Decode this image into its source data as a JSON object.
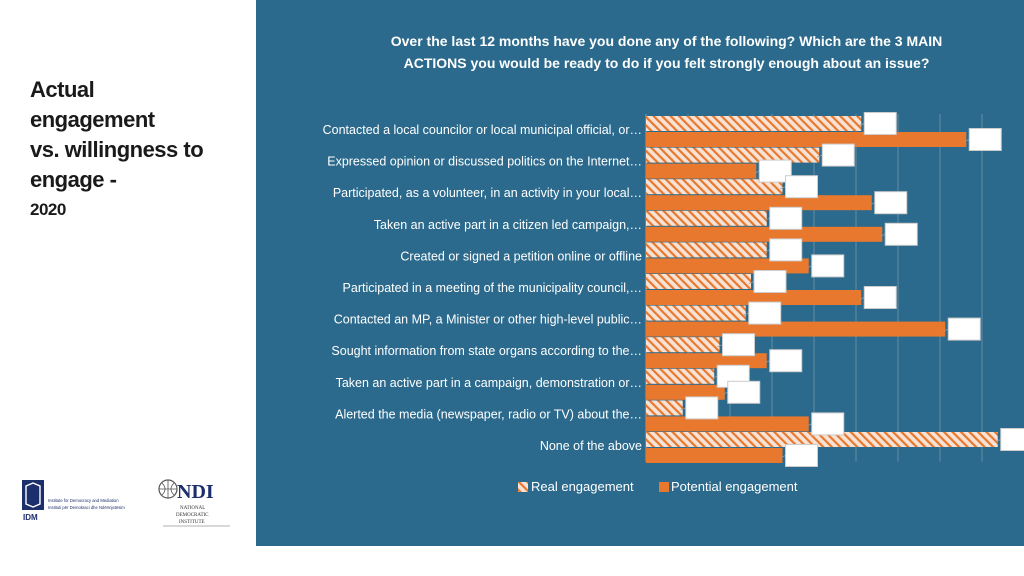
{
  "heading": {
    "line1": "Actual",
    "line2": "engagement",
    "line3": "vs. willingness to",
    "line4": "engage -",
    "year": "2020"
  },
  "logos": {
    "idm_text": "IDM",
    "idm_name": "Institute for Democracy and Mediation",
    "idm_subname": "Instituti për Demokraci dhe Ndërmjetësim",
    "ndi_text": "NDI",
    "ndi_line1": "NATIONAL",
    "ndi_line2": "DEMOCRATIC",
    "ndi_line3": "INSTITUTE"
  },
  "colors": {
    "panel": "#2b6a8c",
    "potential": "#e8782e",
    "real_stripe": "#e8782e",
    "real_bg": "#f6e3d6"
  },
  "chart_data": {
    "type": "bar",
    "orientation": "horizontal",
    "title": "Over the last 12 months have you done any of the following? Which are the 3 MAIN ACTIONS you would be ready to do if you felt strongly enough about an issue?",
    "categories": [
      "Contacted a local councilor or local municipal official, or…",
      "Expressed opinion or discussed politics on the Internet…",
      "Participated, as a volunteer, in an activity in your local…",
      "Taken an active part in a citizen led campaign,…",
      "Created or signed a petition online or offline",
      "Participated in a meeting of the municipality council,…",
      "Contacted an MP, a Minister or other high-level public…",
      "Sought information from state organs according to the…",
      "Taken an active part in a campaign, demonstration or…",
      "Alerted the media (newspaper, radio or TV) about the…",
      "None of the above"
    ],
    "series": [
      {
        "name": "Real engagement",
        "pattern": "striped",
        "values": [
          20.5,
          16.5,
          13.0,
          11.5,
          11.5,
          10.0,
          9.5,
          7.0,
          6.5,
          3.5,
          33.5
        ]
      },
      {
        "name": "Potential engagement",
        "pattern": "solid",
        "values": [
          30.5,
          10.5,
          21.5,
          22.5,
          15.5,
          20.5,
          28.5,
          11.5,
          7.5,
          15.5,
          13.0
        ]
      }
    ],
    "xlim": [
      0,
      34
    ],
    "grid": true,
    "legend": "bottom"
  }
}
